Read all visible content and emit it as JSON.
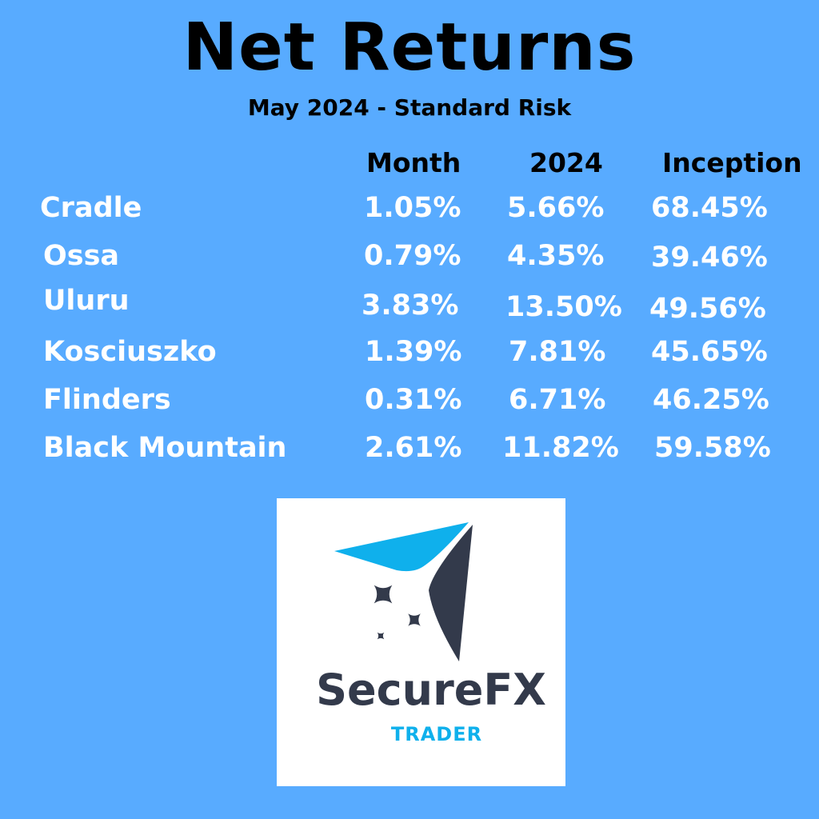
{
  "title": "Net Returns",
  "subtitle": "May 2024  -  Standard Risk",
  "columns": [
    "Month",
    "2024",
    "Inception"
  ],
  "rows": [
    {
      "name": "Cradle",
      "values": [
        "1.05%",
        "5.66%",
        "68.45%"
      ]
    },
    {
      "name": "Ossa",
      "values": [
        "0.79%",
        "4.35%",
        "39.46%"
      ]
    },
    {
      "name": "Uluru",
      "values": [
        "3.83%",
        "13.50%",
        "49.56%"
      ]
    },
    {
      "name": "Kosciuszko",
      "values": [
        "1.39%",
        "7.81%",
        "45.65%"
      ]
    },
    {
      "name": "Flinders",
      "values": [
        "0.31%",
        "6.71%",
        "46.25%"
      ]
    },
    {
      "name": "Black Mountain",
      "values": [
        "2.61%",
        "11.82%",
        "59.58%"
      ]
    }
  ],
  "logo": {
    "name": "SecureFX",
    "tagline": "TRADER",
    "colors": {
      "dark": "#333a4b",
      "blue": "#0fb0ec"
    }
  },
  "colors": {
    "background": "#58abff",
    "header_text": "#000000",
    "cell_text": "#ffffff"
  }
}
